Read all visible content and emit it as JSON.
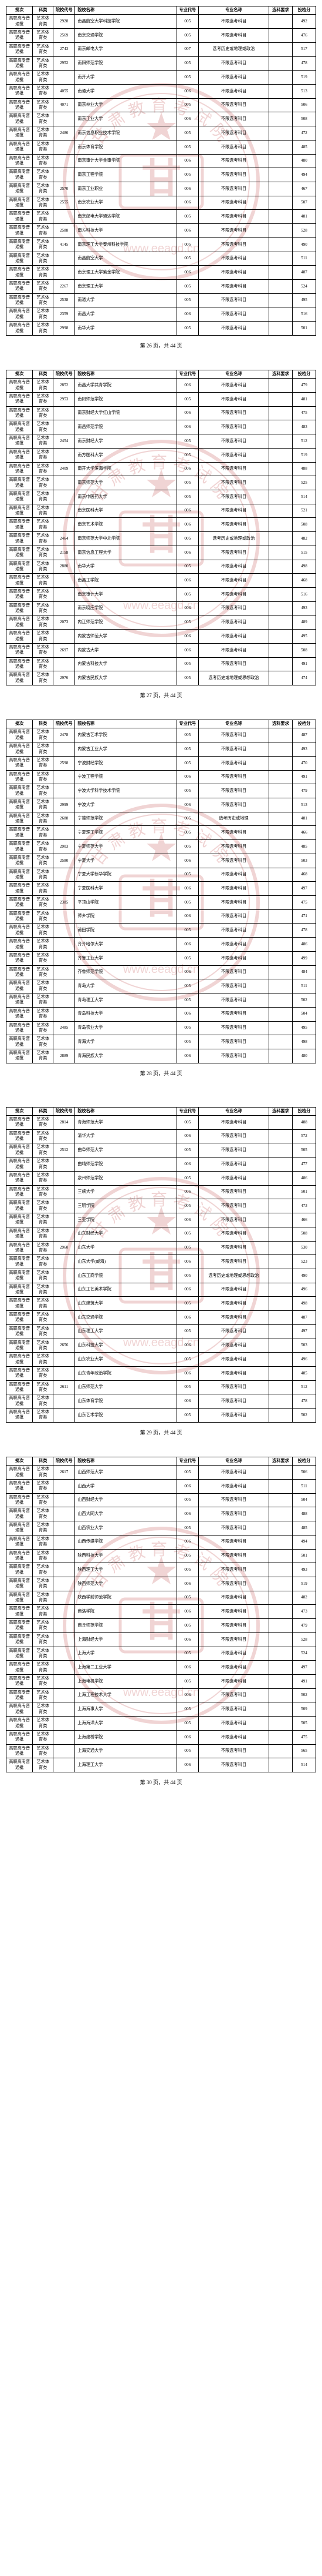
{
  "columns": [
    "批次",
    "科类",
    "院校代号",
    "院校名称",
    "专业代号",
    "专业名称",
    "选科要求",
    "投档分"
  ],
  "watermark": {
    "text_top": "甘肃教育考试院",
    "text_url": "www.eeagd.cn",
    "seal_color": "#b92e2e"
  },
  "footer_template": "第 {n} 页，共 44 页",
  "pages": [
    {
      "page_number": 26,
      "rows": [
        [
          "高职高专普通批",
          "艺术体育类",
          "2928",
          "南昌航空大学科技学院",
          "005",
          "不限选考科目",
          "",
          "492"
        ],
        [
          "高职高专普通批",
          "艺术体育类",
          "2569",
          "南京交通学院",
          "005",
          "不限选考科目",
          "",
          "476"
        ],
        [
          "高职高专普通批",
          "艺术体育类",
          "2743",
          "南京邮电大学",
          "007",
          "选考历史或地理或政治",
          "",
          "517"
        ],
        [
          "高职高专普通批",
          "艺术体育类",
          "2952",
          "南阳师范学院",
          "005",
          "不限选考科目",
          "",
          "478"
        ],
        [
          "高职高专普通批",
          "艺术体育类",
          "",
          "南开大学",
          "005",
          "不限选考科目",
          "",
          "519"
        ],
        [
          "高职高专普通批",
          "艺术体育类",
          "4055",
          "南通大学",
          "006",
          "不限选考科目",
          "",
          "513"
        ],
        [
          "高职高专普通批",
          "艺术体育类",
          "4071",
          "南京林业大学",
          "005",
          "不限选考科目",
          "",
          "506"
        ],
        [
          "高职高专普通批",
          "艺术体育类",
          "",
          "南京工业大学",
          "006",
          "不限选考科目",
          "",
          "508"
        ],
        [
          "高职高专普通批",
          "艺术体育类",
          "2486",
          "南京信息职业技术学院",
          "005",
          "不限选考科目",
          "",
          "472"
        ],
        [
          "高职高专普通批",
          "艺术体育类",
          "",
          "南京体育学院",
          "005",
          "不限选考科目",
          "",
          "485"
        ],
        [
          "高职高专普通批",
          "艺术体育类",
          "",
          "南京审计大学金审学院",
          "006",
          "不限选考科目",
          "",
          "480"
        ],
        [
          "高职高专普通批",
          "艺术体育类",
          "",
          "南京工程学院",
          "005",
          "不限选考科目",
          "",
          "494"
        ],
        [
          "高职高专普通批",
          "艺术体育类",
          "2570",
          "南京工业职业",
          "006",
          "不限选考科目",
          "",
          "467"
        ],
        [
          "高职高专普通批",
          "艺术体育类",
          "2555",
          "南京农业大学",
          "006",
          "不限选考科目",
          "",
          "507"
        ],
        [
          "高职高专普通批",
          "艺术体育类",
          "",
          "南京邮电大学通达学院",
          "005",
          "不限选考科目",
          "",
          "481"
        ],
        [
          "高职高专普通批",
          "艺术体育类",
          "2588",
          "南方科技大学",
          "006",
          "不限选考科目",
          "",
          "528"
        ],
        [
          "高职高专普通批",
          "艺术体育类",
          "4145",
          "南京理工大学泰州科技学院",
          "005",
          "不限选考科目",
          "",
          "490"
        ],
        [
          "高职高专普通批",
          "艺术体育类",
          "",
          "南昌航空大学",
          "005",
          "不限选考科目",
          "",
          "511"
        ],
        [
          "高职高专普通批",
          "艺术体育类",
          "",
          "南京理工大学紫金学院",
          "006",
          "不限选考科目",
          "",
          "487"
        ],
        [
          "高职高专普通批",
          "艺术体育类",
          "2267",
          "南京理工大学",
          "005",
          "不限选考科目",
          "",
          "524"
        ],
        [
          "高职高专普通批",
          "艺术体育类",
          "2538",
          "南通大学",
          "005",
          "不限选考科目",
          "",
          "495"
        ],
        [
          "高职高专普通批",
          "艺术体育类",
          "2359",
          "南昌大学",
          "006",
          "不限选考科目",
          "",
          "516"
        ],
        [
          "高职高专普通批",
          "艺术体育类",
          "2998",
          "南华大学",
          "005",
          "不限选考科目",
          "",
          "501"
        ]
      ]
    },
    {
      "page_number": 27,
      "rows": [
        [
          "高职高专普通批",
          "艺术体育类",
          "2852",
          "南昌大学共青学院",
          "006",
          "不限选考科目",
          "",
          "479"
        ],
        [
          "高职高专普通批",
          "艺术体育类",
          "2953",
          "南阳师范学院",
          "005",
          "不限选考科目",
          "",
          "481"
        ],
        [
          "高职高专普通批",
          "艺术体育类",
          "",
          "南京财经大学红山学院",
          "006",
          "不限选考科目",
          "",
          "475"
        ],
        [
          "高职高专普通批",
          "艺术体育类",
          "",
          "南昌师范学院",
          "006",
          "不限选考科目",
          "",
          "483"
        ],
        [
          "高职高专普通批",
          "艺术体育类",
          "2454",
          "南京财经大学",
          "005",
          "不限选考科目",
          "",
          "512"
        ],
        [
          "高职高专普通批",
          "艺术体育类",
          "",
          "南方医科大学",
          "005",
          "不限选考科目",
          "",
          "519"
        ],
        [
          "高职高专普通批",
          "艺术体育类",
          "2409",
          "南开大学滨海学院",
          "006",
          "不限选考科目",
          "",
          "488"
        ],
        [
          "高职高专普通批",
          "艺术体育类",
          "",
          "南京师范大学",
          "005",
          "不限选考科目",
          "",
          "525"
        ],
        [
          "高职高专普通批",
          "艺术体育类",
          "",
          "南京中医药大学",
          "005",
          "不限选考科目",
          "",
          "514"
        ],
        [
          "高职高专普通批",
          "艺术体育类",
          "",
          "南京医科大学",
          "006",
          "不限选考科目",
          "",
          "521"
        ],
        [
          "高职高专普通批",
          "艺术体育类",
          "",
          "南京艺术学院",
          "006",
          "不限选考科目",
          "",
          "508"
        ],
        [
          "高职高专普通批",
          "艺术体育类",
          "2464",
          "南京师范大学中北学院",
          "005",
          "选考历史或地理或政治",
          "",
          "482"
        ],
        [
          "高职高专普通批",
          "艺术体育类",
          "2158",
          "南京信息工程大学",
          "006",
          "不限选考科目",
          "",
          "515"
        ],
        [
          "高职高专普通批",
          "艺术体育类",
          "2880",
          "南华大学",
          "005",
          "不限选考科目",
          "",
          "498"
        ],
        [
          "高职高专普通批",
          "艺术体育类",
          "",
          "南昌工学院",
          "006",
          "不限选考科目",
          "",
          "468"
        ],
        [
          "高职高专普通批",
          "艺术体育类",
          "",
          "南京审计大学",
          "005",
          "不限选考科目",
          "",
          "516"
        ],
        [
          "高职高专普通批",
          "艺术体育类",
          "",
          "南京晓庄学院",
          "006",
          "不限选考科目",
          "",
          "493"
        ],
        [
          "高职高专普通批",
          "艺术体育类",
          "2073",
          "内江师范学院",
          "005",
          "不限选考科目",
          "",
          "489"
        ],
        [
          "高职高专普通批",
          "艺术体育类",
          "",
          "内蒙古师范大学",
          "006",
          "不限选考科目",
          "",
          "495"
        ],
        [
          "高职高专普通批",
          "艺术体育类",
          "2697",
          "内蒙古大学",
          "006",
          "不限选考科目",
          "",
          "508"
        ],
        [
          "高职高专普通批",
          "艺术体育类",
          "",
          "内蒙古科技大学",
          "005",
          "不限选考科目",
          "",
          "491"
        ],
        [
          "高职高专普通批",
          "艺术体育类",
          "2976",
          "内蒙古民族大学",
          "005",
          "选考历史或地理或思想政治",
          "",
          "474"
        ]
      ]
    },
    {
      "page_number": 28,
      "rows": [
        [
          "高职高专普通批",
          "艺术体育类",
          "2478",
          "内蒙古艺术学院",
          "005",
          "不限选考科目",
          "",
          "487"
        ],
        [
          "高职高专普通批",
          "艺术体育类",
          "",
          "内蒙古工业大学",
          "005",
          "不限选考科目",
          "",
          "493"
        ],
        [
          "高职高专普通批",
          "艺术体育类",
          "2598",
          "宁波财经学院",
          "005",
          "不限选考科目",
          "",
          "470"
        ],
        [
          "高职高专普通批",
          "艺术体育类",
          "",
          "宁波工程学院",
          "006",
          "不限选考科目",
          "",
          "491"
        ],
        [
          "高职高专普通批",
          "艺术体育类",
          "",
          "宁波大学科学技术学院",
          "005",
          "不限选考科目",
          "",
          "479"
        ],
        [
          "高职高专普通批",
          "艺术体育类",
          "2999",
          "宁波大学",
          "006",
          "不限选考科目",
          "",
          "513"
        ],
        [
          "高职高专普通批",
          "艺术体育类",
          "2688",
          "宁德师范学院",
          "005",
          "选考历史或地理",
          "",
          "481"
        ],
        [
          "高职高专普通批",
          "艺术体育类",
          "",
          "宁夏理工学院",
          "005",
          "不限选考科目",
          "",
          "466"
        ],
        [
          "高职高专普通批",
          "艺术体育类",
          "2903",
          "宁夏师范大学",
          "005",
          "不限选考科目",
          "",
          "485"
        ],
        [
          "高职高专普通批",
          "艺术体育类",
          "2580",
          "宁夏大学",
          "006",
          "不限选考科目",
          "",
          "503"
        ],
        [
          "高职高专普通批",
          "艺术体育类",
          "",
          "宁夏大学新华学院",
          "005",
          "不限选考科目",
          "",
          "468"
        ],
        [
          "高职高专普通批",
          "艺术体育类",
          "",
          "宁夏医科大学",
          "006",
          "不限选考科目",
          "",
          "497"
        ],
        [
          "高职高专普通批",
          "艺术体育类",
          "2385",
          "平顶山学院",
          "005",
          "不限选考科目",
          "",
          "475"
        ],
        [
          "高职高专普通批",
          "艺术体育类",
          "",
          "萍乡学院",
          "006",
          "不限选考科目",
          "",
          "471"
        ],
        [
          "高职高专普通批",
          "艺术体育类",
          "",
          "莆田学院",
          "005",
          "不限选考科目",
          "",
          "478"
        ],
        [
          "高职高专普通批",
          "艺术体育类",
          "",
          "齐齐哈尔大学",
          "006",
          "不限选考科目",
          "",
          "486"
        ],
        [
          "高职高专普通批",
          "艺术体育类",
          "",
          "齐鲁工业大学",
          "005",
          "不限选考科目",
          "",
          "499"
        ],
        [
          "高职高专普通批",
          "艺术体育类",
          "",
          "齐鲁师范学院",
          "006",
          "不限选考科目",
          "",
          "484"
        ],
        [
          "高职高专普通批",
          "艺术体育类",
          "",
          "青岛大学",
          "005",
          "不限选考科目",
          "",
          "511"
        ],
        [
          "高职高专普通批",
          "艺术体育类",
          "",
          "青岛理工大学",
          "005",
          "不限选考科目",
          "",
          "502"
        ],
        [
          "高职高专普通批",
          "艺术体育类",
          "",
          "青岛科技大学",
          "006",
          "不限选考科目",
          "",
          "504"
        ],
        [
          "高职高专普通批",
          "艺术体育类",
          "2485",
          "青岛农业大学",
          "005",
          "不限选考科目",
          "",
          "495"
        ],
        [
          "高职高专普通批",
          "艺术体育类",
          "",
          "青海大学",
          "005",
          "不限选考科目",
          "",
          "498"
        ],
        [
          "高职高专普通批",
          "艺术体育类",
          "2889",
          "青海民族大学",
          "006",
          "不限选考科目",
          "",
          "480"
        ]
      ]
    },
    {
      "page_number": 29,
      "rows": [
        [
          "高职高专普通批",
          "艺术体育类",
          "2814",
          "青海师范大学",
          "005",
          "不限选考科目",
          "",
          "488"
        ],
        [
          "高职高专普通批",
          "艺术体育类",
          "",
          "清华大学",
          "006",
          "不限选考科目",
          "",
          "572"
        ],
        [
          "高职高专普通批",
          "艺术体育类",
          "2512",
          "曲阜师范大学",
          "005",
          "不限选考科目",
          "",
          "505"
        ],
        [
          "高职高专普通批",
          "艺术体育类",
          "",
          "曲靖师范学院",
          "006",
          "不限选考科目",
          "",
          "477"
        ],
        [
          "高职高专普通批",
          "艺术体育类",
          "",
          "泉州师范学院",
          "005",
          "不限选考科目",
          "",
          "486"
        ],
        [
          "高职高专普通批",
          "艺术体育类",
          "",
          "三峡大学",
          "006",
          "不限选考科目",
          "",
          "501"
        ],
        [
          "高职高专普通批",
          "艺术体育类",
          "",
          "三明学院",
          "005",
          "不限选考科目",
          "",
          "473"
        ],
        [
          "高职高专普通批",
          "艺术体育类",
          "",
          "三亚学院",
          "006",
          "不限选考科目",
          "",
          "466"
        ],
        [
          "高职高专普通批",
          "艺术体育类",
          "",
          "山东财经大学",
          "005",
          "不限选考科目",
          "",
          "508"
        ],
        [
          "高职高专普通批",
          "艺术体育类",
          "2960",
          "山东大学",
          "005",
          "不限选考科目",
          "",
          "530"
        ],
        [
          "高职高专普通批",
          "艺术体育类",
          "",
          "山东大学(威海)",
          "006",
          "不限选考科目",
          "",
          "523"
        ],
        [
          "高职高专普通批",
          "艺术体育类",
          "",
          "山东工商学院",
          "005",
          "选考历史或地理或思想政治",
          "",
          "490"
        ],
        [
          "高职高专普通批",
          "艺术体育类",
          "",
          "山东工艺美术学院",
          "006",
          "不限选考科目",
          "",
          "496"
        ],
        [
          "高职高专普通批",
          "艺术体育类",
          "",
          "山东建筑大学",
          "005",
          "不限选考科目",
          "",
          "498"
        ],
        [
          "高职高专普通批",
          "艺术体育类",
          "",
          "山东交通学院",
          "006",
          "不限选考科目",
          "",
          "487"
        ],
        [
          "高职高专普通批",
          "艺术体育类",
          "",
          "山东理工大学",
          "005",
          "不限选考科目",
          "",
          "497"
        ],
        [
          "高职高专普通批",
          "艺术体育类",
          "2656",
          "山东科技大学",
          "006",
          "不限选考科目",
          "",
          "503"
        ],
        [
          "高职高专普通批",
          "艺术体育类",
          "",
          "山东农业大学",
          "005",
          "不限选考科目",
          "",
          "496"
        ],
        [
          "高职高专普通批",
          "艺术体育类",
          "",
          "山东青年政治学院",
          "006",
          "不限选考科目",
          "",
          "485"
        ],
        [
          "高职高专普通批",
          "艺术体育类",
          "2611",
          "山东师范大学",
          "005",
          "不限选考科目",
          "",
          "512"
        ],
        [
          "高职高专普通批",
          "艺术体育类",
          "",
          "山东体育学院",
          "006",
          "不限选考科目",
          "",
          "478"
        ],
        [
          "高职高专普通批",
          "艺术体育类",
          "",
          "山东艺术学院",
          "005",
          "不限选考科目",
          "",
          "502"
        ]
      ]
    },
    {
      "page_number": 30,
      "rows": [
        [
          "高职高专普通批",
          "艺术体育类",
          "2617",
          "山西师范大学",
          "005",
          "不限选考科目",
          "",
          "506"
        ],
        [
          "高职高专普通批",
          "艺术体育类",
          "",
          "山西大学",
          "006",
          "不限选考科目",
          "",
          "511"
        ],
        [
          "高职高专普通批",
          "艺术体育类",
          "",
          "山西财经大学",
          "005",
          "不限选考科目",
          "",
          "504"
        ],
        [
          "高职高专普通批",
          "艺术体育类",
          "",
          "山西大同大学",
          "006",
          "不限选考科目",
          "",
          "488"
        ],
        [
          "高职高专普通批",
          "艺术体育类",
          "",
          "山西农业大学",
          "005",
          "不限选考科目",
          "",
          "485"
        ],
        [
          "高职高专普通批",
          "艺术体育类",
          "",
          "山西传媒学院",
          "006",
          "不限选考科目",
          "",
          "494"
        ],
        [
          "高职高专普通批",
          "艺术体育类",
          "",
          "陕西科技大学",
          "005",
          "不限选考科目",
          "",
          "501"
        ],
        [
          "高职高专普通批",
          "艺术体育类",
          "",
          "陕西理工大学",
          "005",
          "不限选考科目",
          "",
          "493"
        ],
        [
          "高职高专普通批",
          "艺术体育类",
          "",
          "陕西师范大学",
          "006",
          "不限选考科目",
          "",
          "519"
        ],
        [
          "高职高专普通批",
          "艺术体育类",
          "",
          "陕西学前师范学院",
          "005",
          "不限选考科目",
          "",
          "482"
        ],
        [
          "高职高专普通批",
          "艺术体育类",
          "",
          "商洛学院",
          "006",
          "不限选考科目",
          "",
          "473"
        ],
        [
          "高职高专普通批",
          "艺术体育类",
          "",
          "商丘师范学院",
          "005",
          "不限选考科目",
          "",
          "479"
        ],
        [
          "高职高专普通批",
          "艺术体育类",
          "",
          "上海财经大学",
          "006",
          "不限选考科目",
          "",
          "528"
        ],
        [
          "高职高专普通批",
          "艺术体育类",
          "",
          "上海大学",
          "005",
          "不限选考科目",
          "",
          "524"
        ],
        [
          "高职高专普通批",
          "艺术体育类",
          "",
          "上海第二工业大学",
          "006",
          "不限选考科目",
          "",
          "497"
        ],
        [
          "高职高专普通批",
          "艺术体育类",
          "",
          "上海电机学院",
          "005",
          "不限选考科目",
          "",
          "491"
        ],
        [
          "高职高专普通批",
          "艺术体育类",
          "",
          "上海工程技术大学",
          "006",
          "不限选考科目",
          "",
          "502"
        ],
        [
          "高职高专普通批",
          "艺术体育类",
          "",
          "上海海事大学",
          "005",
          "不限选考科目",
          "",
          "509"
        ],
        [
          "高职高专普通批",
          "艺术体育类",
          "",
          "上海海洋大学",
          "005",
          "不限选考科目",
          "",
          "505"
        ],
        [
          "高职高专普通批",
          "艺术体育类",
          "",
          "上海建桥学院",
          "006",
          "不限选考科目",
          "",
          "475"
        ],
        [
          "高职高专普通批",
          "艺术体育类",
          "",
          "上海交通大学",
          "005",
          "不限选考科目",
          "",
          "565"
        ],
        [
          "高职高专普通批",
          "艺术体育类",
          "",
          "上海理工大学",
          "006",
          "不限选考科目",
          "",
          "514"
        ]
      ]
    }
  ]
}
